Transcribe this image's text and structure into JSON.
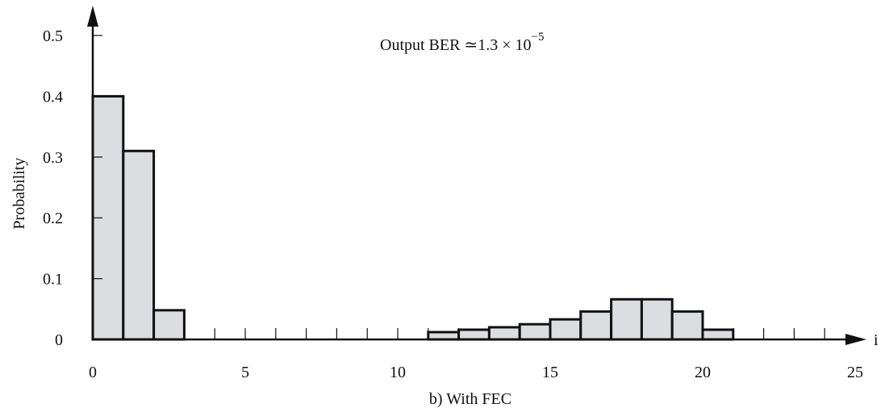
{
  "chart_data": {
    "type": "bar",
    "title": "",
    "caption": "b) With FEC",
    "xlabel": "i",
    "ylabel": "Probability",
    "annotation": {
      "text": "Output BER ≃1.3 × 10",
      "superscript": "−5"
    },
    "xlim": [
      0,
      25
    ],
    "ylim": [
      0,
      0.5
    ],
    "x_ticks": [
      0,
      5,
      10,
      15,
      20,
      25
    ],
    "x_tick_labels": [
      "0",
      "5",
      "10",
      "15",
      "20",
      "25"
    ],
    "x_minor_ticks": [
      1,
      2,
      3,
      4,
      5,
      6,
      7,
      8,
      9,
      10,
      11,
      12,
      13,
      14,
      15,
      16,
      17,
      18,
      19,
      20,
      21,
      22,
      23,
      24
    ],
    "y_ticks": [
      0,
      0.1,
      0.2,
      0.3,
      0.4,
      0.5
    ],
    "y_tick_labels": [
      "0",
      "0.1",
      "0.2",
      "0.3",
      "0.4",
      "0.5"
    ],
    "bin_width": 1,
    "bars": [
      {
        "x": 0,
        "value": 0.4
      },
      {
        "x": 1,
        "value": 0.31
      },
      {
        "x": 2,
        "value": 0.048
      },
      {
        "x": 11,
        "value": 0.012
      },
      {
        "x": 12,
        "value": 0.016
      },
      {
        "x": 13,
        "value": 0.02
      },
      {
        "x": 14,
        "value": 0.025
      },
      {
        "x": 15,
        "value": 0.033
      },
      {
        "x": 16,
        "value": 0.046
      },
      {
        "x": 17,
        "value": 0.066
      },
      {
        "x": 18,
        "value": 0.066
      },
      {
        "x": 19,
        "value": 0.046
      },
      {
        "x": 20,
        "value": 0.016
      }
    ],
    "grid": false,
    "colors": {
      "bar_fill": "#dcdde1",
      "bar_stroke": "#111111",
      "axis": "#111111"
    }
  }
}
